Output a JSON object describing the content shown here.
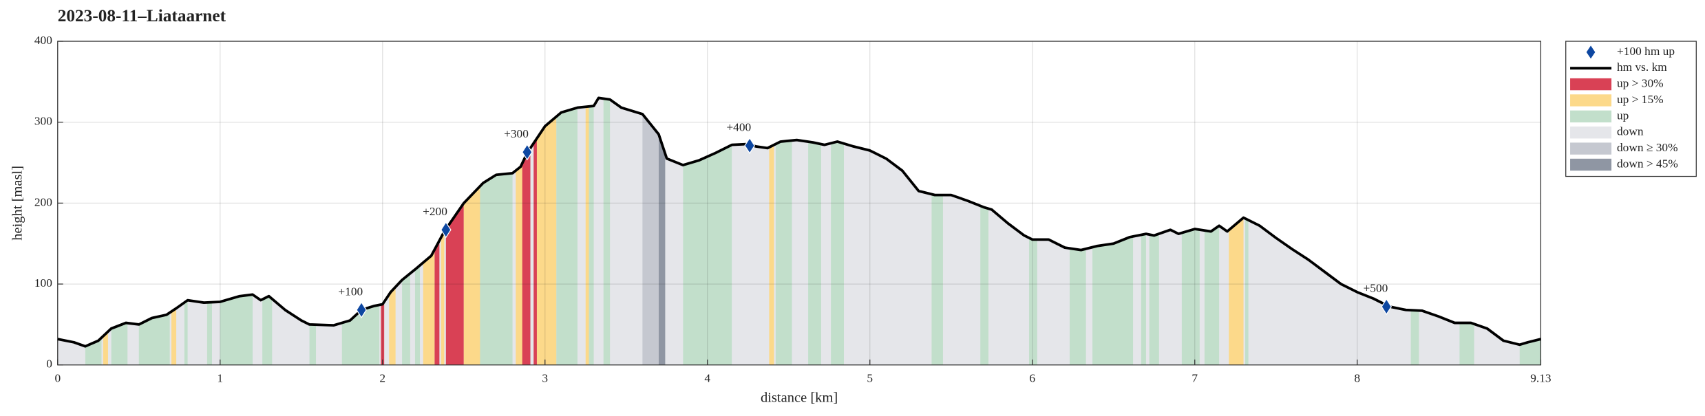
{
  "chart_data": {
    "type": "elevation-profile",
    "title": "2023-08-11–Liataarnet",
    "xlabel": "distance [km]",
    "ylabel": "height [masl]",
    "xlim": [
      0,
      9.13
    ],
    "ylim": [
      0,
      400
    ],
    "xticks": [
      0,
      1,
      2,
      3,
      4,
      5,
      6,
      7,
      8,
      9.13
    ],
    "yticks": [
      0,
      100,
      200,
      300,
      400
    ],
    "grid": true,
    "line": {
      "name": "hm vs. km",
      "color": "#000000",
      "x": [
        0,
        0.1,
        0.17,
        0.25,
        0.33,
        0.42,
        0.5,
        0.58,
        0.67,
        0.73,
        0.8,
        0.9,
        1.0,
        1.12,
        1.2,
        1.25,
        1.3,
        1.4,
        1.5,
        1.55,
        1.7,
        1.8,
        1.87,
        1.95,
        2.0,
        2.05,
        2.12,
        2.2,
        2.3,
        2.38,
        2.5,
        2.62,
        2.7,
        2.8,
        2.85,
        2.89,
        3.0,
        3.1,
        3.2,
        3.3,
        3.33,
        3.4,
        3.47,
        3.6,
        3.7,
        3.75,
        3.85,
        3.95,
        4.05,
        4.15,
        4.25,
        4.3,
        4.37,
        4.45,
        4.55,
        4.65,
        4.72,
        4.8,
        4.9,
        5.0,
        5.1,
        5.2,
        5.3,
        5.4,
        5.5,
        5.6,
        5.7,
        5.75,
        5.85,
        5.95,
        6.0,
        6.1,
        6.2,
        6.3,
        6.4,
        6.5,
        6.6,
        6.7,
        6.75,
        6.85,
        6.9,
        7.0,
        7.1,
        7.15,
        7.2,
        7.3,
        7.4,
        7.5,
        7.6,
        7.7,
        7.8,
        7.9,
        8.0,
        8.1,
        8.2,
        8.3,
        8.4,
        8.5,
        8.6,
        8.7,
        8.8,
        8.9,
        9.0,
        9.05,
        9.13
      ],
      "y": [
        32,
        28,
        23,
        30,
        45,
        52,
        50,
        58,
        62,
        70,
        80,
        77,
        78,
        85,
        87,
        80,
        85,
        68,
        55,
        50,
        49,
        55,
        68,
        73,
        75,
        90,
        105,
        118,
        135,
        165,
        200,
        225,
        235,
        237,
        245,
        262,
        295,
        312,
        318,
        320,
        330,
        328,
        318,
        310,
        285,
        255,
        247,
        253,
        262,
        272,
        273,
        270,
        268,
        276,
        278,
        275,
        272,
        276,
        270,
        265,
        255,
        240,
        215,
        210,
        210,
        203,
        195,
        192,
        175,
        160,
        155,
        155,
        145,
        142,
        147,
        150,
        158,
        162,
        160,
        167,
        162,
        168,
        165,
        172,
        165,
        182,
        172,
        157,
        143,
        130,
        115,
        100,
        90,
        82,
        72,
        68,
        67,
        60,
        52,
        52,
        45,
        30,
        25,
        28,
        32
      ]
    },
    "markers": {
      "name": "+100 hm up",
      "color": "#0d47a1",
      "x": [
        1.87,
        2.39,
        2.89,
        4.26,
        8.18
      ],
      "y": [
        68,
        167,
        263,
        271,
        72
      ],
      "labels": [
        "+100",
        "+200",
        "+300",
        "+400",
        "+500"
      ]
    },
    "bands": [
      {
        "name": "up > 30%",
        "color": "#d94155",
        "intervals": [
          [
            1.99,
            2.01
          ],
          [
            2.32,
            2.35
          ],
          [
            2.39,
            2.5
          ],
          [
            2.85,
            2.91
          ],
          [
            2.93,
            2.95
          ]
        ]
      },
      {
        "name": "up > 15%",
        "color": "#fcd98a",
        "intervals": [
          [
            0.28,
            0.31
          ],
          [
            0.7,
            0.73
          ],
          [
            2.04,
            2.08
          ],
          [
            2.25,
            2.32
          ],
          [
            2.36,
            2.38
          ],
          [
            2.5,
            2.62
          ],
          [
            2.82,
            2.86
          ],
          [
            2.95,
            3.07
          ],
          [
            3.25,
            3.27
          ],
          [
            4.38,
            4.41
          ],
          [
            7.21,
            7.3
          ]
        ]
      },
      {
        "name": "up",
        "color": "#c2dfcb",
        "intervals": [
          [
            0.17,
            0.27
          ],
          [
            0.33,
            0.43
          ],
          [
            0.5,
            0.69
          ],
          [
            0.78,
            0.8
          ],
          [
            0.92,
            0.95
          ],
          [
            1.0,
            1.2
          ],
          [
            1.26,
            1.32
          ],
          [
            1.55,
            1.59
          ],
          [
            1.75,
            1.98
          ],
          [
            2.12,
            2.17
          ],
          [
            2.2,
            2.23
          ],
          [
            2.6,
            2.8
          ],
          [
            3.07,
            3.2
          ],
          [
            3.27,
            3.3
          ],
          [
            3.36,
            3.4
          ],
          [
            3.85,
            4.15
          ],
          [
            4.42,
            4.52
          ],
          [
            4.62,
            4.7
          ],
          [
            4.76,
            4.84
          ],
          [
            5.38,
            5.45
          ],
          [
            5.68,
            5.73
          ],
          [
            5.98,
            6.03
          ],
          [
            6.23,
            6.33
          ],
          [
            6.37,
            6.62
          ],
          [
            6.67,
            6.7
          ],
          [
            6.72,
            6.78
          ],
          [
            6.92,
            7.03
          ],
          [
            7.06,
            7.15
          ],
          [
            7.31,
            7.33
          ],
          [
            8.33,
            8.38
          ],
          [
            8.63,
            8.72
          ],
          [
            9.0,
            9.13
          ]
        ]
      },
      {
        "name": "down",
        "color": "#e5e6ea",
        "intervals": [
          [
            0,
            9.13
          ]
        ]
      },
      {
        "name": "down ≥ 30%",
        "color": "#c5c8d0",
        "intervals": [
          [
            3.6,
            3.7
          ]
        ]
      },
      {
        "name": "down > 45%",
        "color": "#8f96a3",
        "intervals": [
          [
            3.7,
            3.74
          ]
        ]
      }
    ]
  }
}
